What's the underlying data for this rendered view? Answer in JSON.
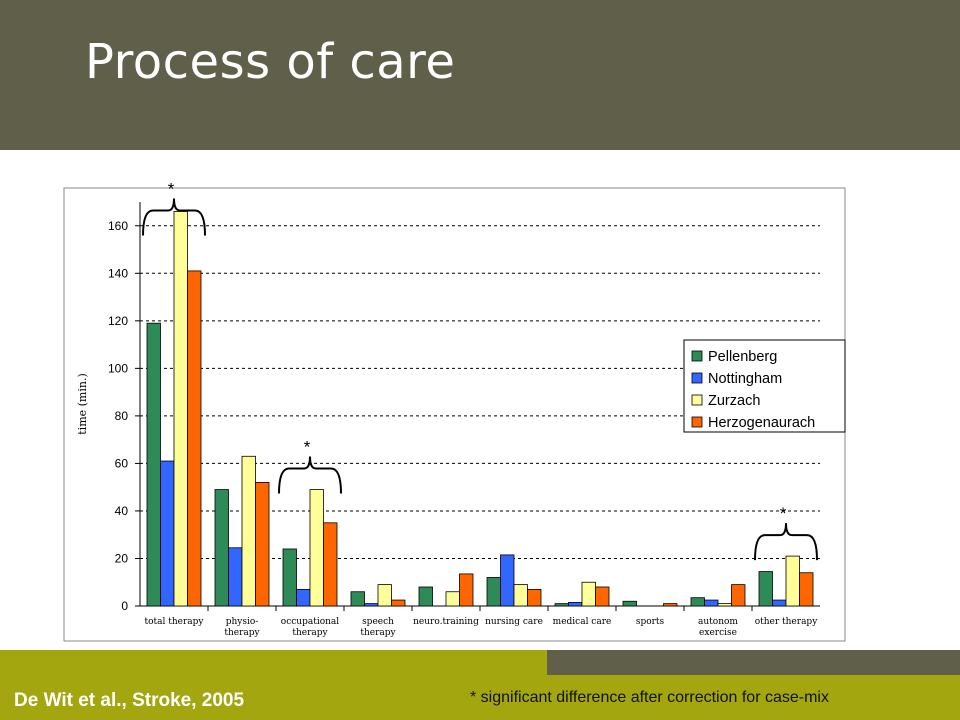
{
  "slide": {
    "title": "Process of care",
    "citation": "De Wit et al., Stroke, 2005",
    "footnote": "* significant difference after correction for case-mix"
  },
  "colors": {
    "header": "#5f5f4a",
    "footer_accent": "#a3a60e"
  },
  "chart_data": {
    "type": "bar",
    "title": "",
    "xlabel": "",
    "ylabel": "time (min.)",
    "ylim": [
      0,
      170
    ],
    "yticks": [
      0,
      20,
      40,
      60,
      80,
      100,
      120,
      140,
      160
    ],
    "grid": true,
    "legend_position": "top-right",
    "categories": [
      "total therapy",
      "physio-\ntherapy",
      "occupational\ntherapy",
      "speech\ntherapy",
      "neuro.training",
      "nursing care",
      "medical care",
      "sports",
      "autonom\nexercise",
      "other therapy"
    ],
    "series": [
      {
        "name": "Pellenberg",
        "color": "#2e8b57",
        "values": [
          119,
          49,
          24,
          6,
          8,
          12,
          1,
          2,
          3.5,
          14.5
        ]
      },
      {
        "name": "Nottingham",
        "color": "#3366ff",
        "values": [
          61,
          24.5,
          7,
          1,
          0,
          21.5,
          1.5,
          0,
          2.5,
          2.5
        ]
      },
      {
        "name": "Zurzach",
        "color": "#ffff99",
        "values": [
          166,
          63,
          49,
          9,
          6,
          9,
          10,
          0,
          1,
          21
        ]
      },
      {
        "name": "Herzogenaurach",
        "color": "#ff6600",
        "values": [
          141,
          52,
          35,
          2.5,
          13.5,
          7,
          8,
          1,
          9,
          14
        ]
      }
    ],
    "annotations": [
      {
        "text": "*",
        "category_indices": [
          0
        ]
      },
      {
        "text": "*",
        "category_indices": [
          2
        ]
      },
      {
        "text": "*",
        "category_indices": [
          9
        ]
      }
    ]
  }
}
